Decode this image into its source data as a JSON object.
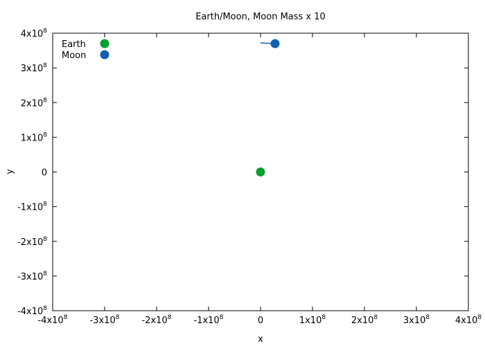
{
  "chart_data": {
    "type": "scatter",
    "title": "Earth/Moon, Moon Mass x 10",
    "xlabel": "x",
    "ylabel": "y",
    "xlim": [
      -400000000,
      400000000
    ],
    "ylim": [
      -400000000,
      400000000
    ],
    "x_ticks": [
      {
        "value": -400000000,
        "base": "-4x10",
        "exp": "8"
      },
      {
        "value": -300000000,
        "base": "-3x10",
        "exp": "8"
      },
      {
        "value": -200000000,
        "base": "-2x10",
        "exp": "8"
      },
      {
        "value": -100000000,
        "base": "-1x10",
        "exp": "8"
      },
      {
        "value": 0,
        "base": "0",
        "exp": ""
      },
      {
        "value": 100000000,
        "base": "1x10",
        "exp": "8"
      },
      {
        "value": 200000000,
        "base": "2x10",
        "exp": "8"
      },
      {
        "value": 300000000,
        "base": "3x10",
        "exp": "8"
      },
      {
        "value": 400000000,
        "base": "4x10",
        "exp": "8"
      }
    ],
    "y_ticks": [
      {
        "value": 400000000,
        "base": "4x10",
        "exp": "8"
      },
      {
        "value": 300000000,
        "base": "3x10",
        "exp": "8"
      },
      {
        "value": 200000000,
        "base": "2x10",
        "exp": "8"
      },
      {
        "value": 100000000,
        "base": "1x10",
        "exp": "8"
      },
      {
        "value": 0,
        "base": "0",
        "exp": ""
      },
      {
        "value": -100000000,
        "base": "-1x10",
        "exp": "8"
      },
      {
        "value": -200000000,
        "base": "-2x10",
        "exp": "8"
      },
      {
        "value": -300000000,
        "base": "-3x10",
        "exp": "8"
      },
      {
        "value": -400000000,
        "base": "-4x10",
        "exp": "8"
      }
    ],
    "grid": false,
    "legend_position": "top-left",
    "series": [
      {
        "name": "Earth",
        "color": "#00a030",
        "points": [
          {
            "x": 0,
            "y": 0
          }
        ],
        "trail": []
      },
      {
        "name": "Moon",
        "color": "#1060b0",
        "points": [
          {
            "x": 28000000,
            "y": 370000000
          }
        ],
        "trail": [
          {
            "x": 0,
            "y": 372000000
          },
          {
            "x": 28000000,
            "y": 370000000
          }
        ]
      }
    ]
  }
}
